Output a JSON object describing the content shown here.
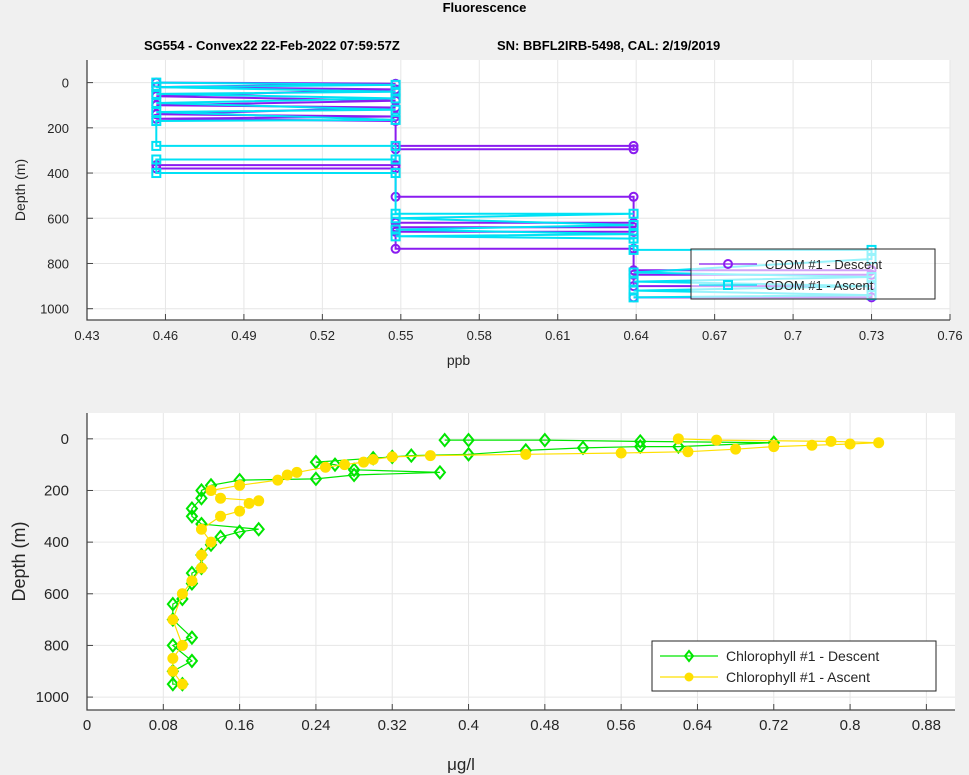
{
  "title": "Fluorescence",
  "subtitle_left": "SG554 - Convex22 22-Feb-2022 07:59:57Z",
  "subtitle_right": "SN: BBFL2IRB-5498, CAL: 2/19/2019",
  "chart_data": [
    {
      "type": "line",
      "xlabel": "ppb",
      "ylabel": "Depth (m)",
      "xlim": [
        0.43,
        0.76
      ],
      "ylim": [
        -100,
        1050
      ],
      "y_reversed": true,
      "grid": true,
      "xticks": [
        "0.43",
        "0.46",
        "0.49",
        "0.52",
        "0.55",
        "0.58",
        "0.61",
        "0.64",
        "0.67",
        "0.7",
        "0.73",
        "0.76"
      ],
      "yticks": [
        "0",
        "200",
        "400",
        "600",
        "800",
        "1000"
      ],
      "legend_position": "bottom-right",
      "series": [
        {
          "name": "CDOM #1 - Descent",
          "color": "#8a1cf0",
          "marker": "circle",
          "points": [
            [
              0,
              0.4565
            ],
            [
              5,
              0.548
            ],
            [
              20,
              0.4565
            ],
            [
              30,
              0.548
            ],
            [
              60,
              0.4565
            ],
            [
              80,
              0.548
            ],
            [
              100,
              0.4565
            ],
            [
              110,
              0.548
            ],
            [
              140,
              0.4565
            ],
            [
              150,
              0.548
            ],
            [
              160,
              0.4565
            ],
            [
              170,
              0.548
            ],
            [
              280,
              0.548
            ],
            [
              280,
              0.639
            ],
            [
              295,
              0.639
            ],
            [
              295,
              0.548
            ],
            [
              365,
              0.548
            ],
            [
              365,
              0.4565
            ],
            [
              380,
              0.4565
            ],
            [
              380,
              0.548
            ],
            [
              505,
              0.548
            ],
            [
              505,
              0.639
            ],
            [
              620,
              0.639
            ],
            [
              620,
              0.548
            ],
            [
              640,
              0.548
            ],
            [
              640,
              0.639
            ],
            [
              660,
              0.639
            ],
            [
              660,
              0.548
            ],
            [
              735,
              0.548
            ],
            [
              735,
              0.639
            ],
            [
              830,
              0.639
            ],
            [
              830,
              0.73
            ],
            [
              850,
              0.73
            ],
            [
              850,
              0.639
            ],
            [
              900,
              0.639
            ],
            [
              900,
              0.73
            ],
            [
              950,
              0.73
            ],
            [
              950,
              0.639
            ]
          ]
        },
        {
          "name": "CDOM #1 - Ascent",
          "color": "#00e1f5",
          "marker": "square",
          "points": [
            [
              950,
              0.639
            ],
            [
              940,
              0.73
            ],
            [
              920,
              0.639
            ],
            [
              900,
              0.73
            ],
            [
              880,
              0.639
            ],
            [
              860,
              0.73
            ],
            [
              840,
              0.639
            ],
            [
              780,
              0.73
            ],
            [
              740,
              0.73
            ],
            [
              740,
              0.639
            ],
            [
              690,
              0.639
            ],
            [
              680,
              0.548
            ],
            [
              670,
              0.639
            ],
            [
              650,
              0.548
            ],
            [
              630,
              0.639
            ],
            [
              600,
              0.548
            ],
            [
              580,
              0.639
            ],
            [
              580,
              0.548
            ],
            [
              400,
              0.548
            ],
            [
              400,
              0.4565
            ],
            [
              340,
              0.4565
            ],
            [
              340,
              0.548
            ],
            [
              280,
              0.548
            ],
            [
              280,
              0.4565
            ],
            [
              170,
              0.4565
            ],
            [
              165,
              0.548
            ],
            [
              130,
              0.4565
            ],
            [
              120,
              0.548
            ],
            [
              90,
              0.4565
            ],
            [
              70,
              0.548
            ],
            [
              50,
              0.4565
            ],
            [
              40,
              0.548
            ],
            [
              20,
              0.4565
            ],
            [
              10,
              0.548
            ],
            [
              0,
              0.4565
            ]
          ]
        }
      ]
    },
    {
      "type": "line",
      "xlabel": "μg/l",
      "ylabel": "Depth (m)",
      "xlim": [
        0,
        0.91
      ],
      "ylim": [
        -100,
        1050
      ],
      "y_reversed": true,
      "grid": true,
      "xticks": [
        "0",
        "0.08",
        "0.16",
        "0.24",
        "0.32",
        "0.4",
        "0.48",
        "0.56",
        "0.64",
        "0.72",
        "0.8",
        "0.88"
      ],
      "yticks": [
        "0",
        "200",
        "400",
        "600",
        "800",
        "1000"
      ],
      "legend_position": "bottom-right",
      "series": [
        {
          "name": "Chlorophyll #1 - Descent",
          "color": "#00e600",
          "marker": "diamond",
          "points": [
            [
              5,
              0.375
            ],
            [
              5,
              0.4
            ],
            [
              5,
              0.48
            ],
            [
              10,
              0.58
            ],
            [
              15,
              0.72
            ],
            [
              30,
              0.62
            ],
            [
              30,
              0.58
            ],
            [
              35,
              0.52
            ],
            [
              45,
              0.46
            ],
            [
              60,
              0.4
            ],
            [
              65,
              0.34
            ],
            [
              70,
              0.32
            ],
            [
              75,
              0.3
            ],
            [
              90,
              0.24
            ],
            [
              100,
              0.26
            ],
            [
              120,
              0.28
            ],
            [
              130,
              0.37
            ],
            [
              140,
              0.28
            ],
            [
              155,
              0.24
            ],
            [
              160,
              0.16
            ],
            [
              180,
              0.13
            ],
            [
              200,
              0.12
            ],
            [
              230,
              0.12
            ],
            [
              270,
              0.11
            ],
            [
              300,
              0.11
            ],
            [
              330,
              0.12
            ],
            [
              350,
              0.18
            ],
            [
              360,
              0.16
            ],
            [
              380,
              0.14
            ],
            [
              410,
              0.13
            ],
            [
              450,
              0.12
            ],
            [
              500,
              0.12
            ],
            [
              520,
              0.11
            ],
            [
              560,
              0.11
            ],
            [
              620,
              0.1
            ],
            [
              640,
              0.09
            ],
            [
              700,
              0.09
            ],
            [
              770,
              0.11
            ],
            [
              800,
              0.09
            ],
            [
              860,
              0.11
            ],
            [
              900,
              0.09
            ],
            [
              950,
              0.09
            ],
            [
              950,
              0.1
            ]
          ]
        },
        {
          "name": "Chlorophyll #1 - Ascent",
          "color": "#ffe000",
          "marker": "filled-circle",
          "points": [
            [
              950,
              0.1
            ],
            [
              900,
              0.09
            ],
            [
              850,
              0.09
            ],
            [
              800,
              0.1
            ],
            [
              700,
              0.09
            ],
            [
              600,
              0.1
            ],
            [
              550,
              0.11
            ],
            [
              500,
              0.12
            ],
            [
              450,
              0.12
            ],
            [
              400,
              0.13
            ],
            [
              350,
              0.12
            ],
            [
              300,
              0.14
            ],
            [
              280,
              0.16
            ],
            [
              250,
              0.17
            ],
            [
              240,
              0.18
            ],
            [
              230,
              0.14
            ],
            [
              200,
              0.13
            ],
            [
              180,
              0.16
            ],
            [
              160,
              0.2
            ],
            [
              140,
              0.21
            ],
            [
              130,
              0.22
            ],
            [
              110,
              0.25
            ],
            [
              100,
              0.27
            ],
            [
              90,
              0.29
            ],
            [
              80,
              0.3
            ],
            [
              70,
              0.32
            ],
            [
              65,
              0.36
            ],
            [
              60,
              0.46
            ],
            [
              55,
              0.56
            ],
            [
              50,
              0.63
            ],
            [
              40,
              0.68
            ],
            [
              30,
              0.72
            ],
            [
              25,
              0.76
            ],
            [
              20,
              0.8
            ],
            [
              15,
              0.83
            ],
            [
              10,
              0.78
            ],
            [
              5,
              0.66
            ],
            [
              0,
              0.62
            ]
          ]
        }
      ]
    }
  ]
}
